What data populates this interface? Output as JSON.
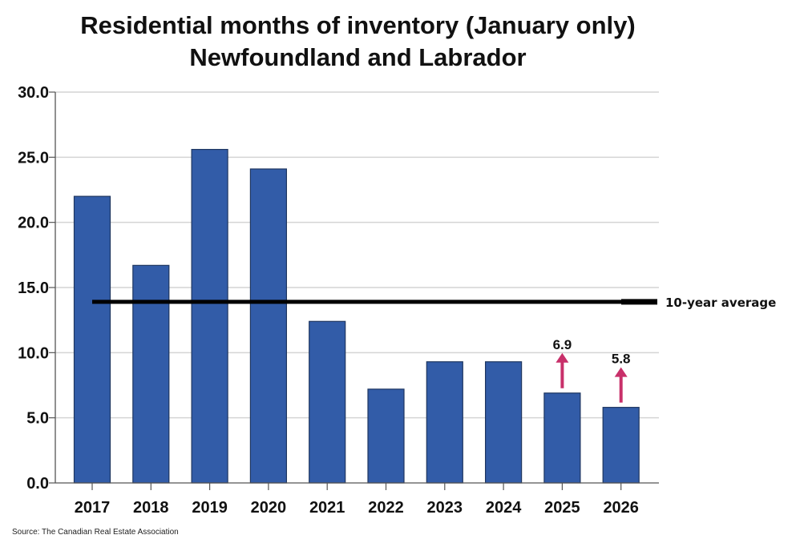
{
  "chart_data": {
    "type": "bar",
    "title": "Residential months of inventory (January only)",
    "subtitle": "Newfoundland and Labrador",
    "categories": [
      "2017",
      "2018",
      "2019",
      "2020",
      "2021",
      "2022",
      "2023",
      "2024",
      "2025",
      "2026"
    ],
    "values": [
      22.0,
      16.7,
      25.6,
      24.1,
      12.4,
      7.2,
      9.3,
      9.3,
      6.9,
      5.8
    ],
    "ylim": [
      0,
      30
    ],
    "yticks": [
      "0.0",
      "5.0",
      "10.0",
      "15.0",
      "20.0",
      "25.0",
      "30.0"
    ],
    "grid": true,
    "bar_color": "#325ca8",
    "average_line": {
      "label": "10-year average",
      "value": 13.9,
      "color": "#000000"
    },
    "annotations": [
      {
        "category": "2025",
        "label": "6.9",
        "arrow": "up",
        "color": "#c8306a"
      },
      {
        "category": "2026",
        "label": "5.8",
        "arrow": "up",
        "color": "#c8306a"
      }
    ],
    "source": "Source: The Canadian Real Estate Association"
  }
}
